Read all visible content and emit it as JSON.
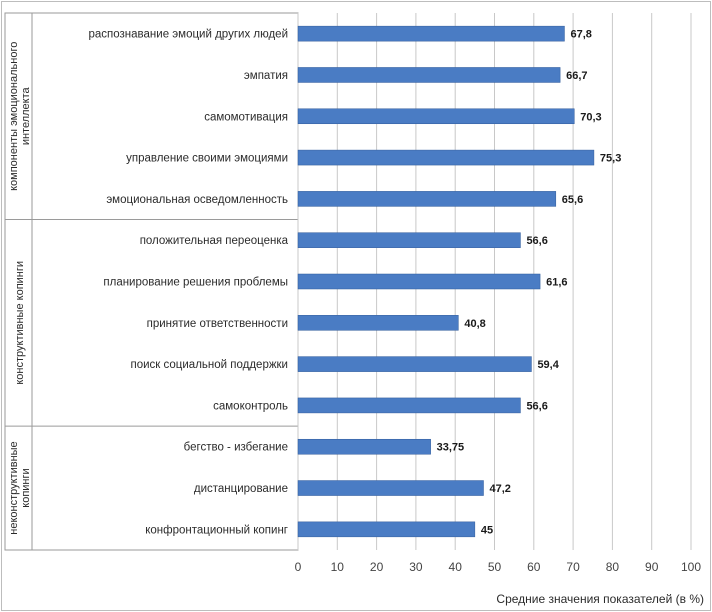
{
  "chart_data": {
    "type": "bar",
    "orientation": "horizontal",
    "categories": [
      "распознавание эмоций других людей",
      "эмпатия",
      "самомотивация",
      "управление своими эмоциями",
      "эмоциональная осведомленность",
      "положительная переоценка",
      "планирование решения проблемы",
      "принятие ответственности",
      "поиск социальной поддержки",
      "самоконтроль",
      "бегство - избегание",
      "дистанцирование",
      "конфронтационный копинг"
    ],
    "values": [
      67.8,
      66.7,
      70.3,
      75.3,
      65.6,
      56.6,
      61.6,
      40.8,
      59.4,
      56.6,
      33.75,
      47.2,
      45
    ],
    "value_labels": [
      "67,8",
      "66,7",
      "70,3",
      "75,3",
      "65,6",
      "56,6",
      "61,6",
      "40,8",
      "59,4",
      "56,6",
      "33,75",
      "47,2",
      "45"
    ],
    "groups": [
      {
        "label": "компоненты эмоционального интеллекта",
        "lines": [
          "компоненты эмоционального",
          "интеллекта"
        ],
        "from": 0,
        "to": 4
      },
      {
        "label": "конструктивные копинги",
        "lines": [
          "конструктивные копинги"
        ],
        "from": 5,
        "to": 9
      },
      {
        "label": "неконструктивные копинги",
        "lines": [
          "неконструктивные",
          "копинги"
        ],
        "from": 10,
        "to": 12
      }
    ],
    "xlim": [
      0,
      100
    ],
    "xticks": [
      0,
      10,
      20,
      30,
      40,
      50,
      60,
      70,
      80,
      90,
      100
    ],
    "xlabel": "Средние значения показателей (в %)",
    "ylabel": "",
    "title": "",
    "grid": true,
    "bar_color": "#4a7cc4",
    "bar_edge_color": "#2f5a9a",
    "grid_color": "#c8c8c8"
  }
}
